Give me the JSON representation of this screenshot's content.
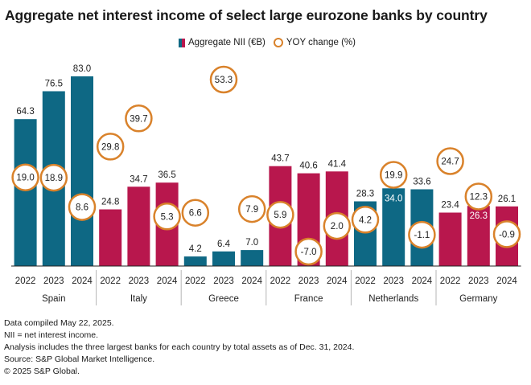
{
  "chart_data": {
    "type": "bar",
    "title": "Aggregate net interest income of select large eurozone banks by country",
    "legend": [
      {
        "label": "Aggregate NII (€B)",
        "marker": "square"
      },
      {
        "label": "YOY change (%)",
        "marker": "circle"
      }
    ],
    "groups": [
      {
        "name": "Spain",
        "color": "#0e6884",
        "years": [
          "2022",
          "2023",
          "2024"
        ],
        "nii": [
          64.3,
          76.5,
          83.0
        ],
        "nii_labels": [
          "64.3",
          "76.5",
          "83.0"
        ],
        "yoy": [
          19.0,
          18.9,
          8.6
        ],
        "yoy_labels": [
          "19.0",
          "18.9",
          "8.6"
        ]
      },
      {
        "name": "Italy",
        "color": "#b8174d",
        "years": [
          "2022",
          "2023",
          "2024"
        ],
        "nii": [
          24.8,
          34.7,
          36.5
        ],
        "nii_labels": [
          "24.8",
          "34.7",
          "36.5"
        ],
        "yoy": [
          29.8,
          39.7,
          5.3
        ],
        "yoy_labels": [
          "29.8",
          "39.7",
          "5.3"
        ]
      },
      {
        "name": "Greece",
        "color": "#0e6884",
        "years": [
          "2022",
          "2023",
          "2024"
        ],
        "nii": [
          4.2,
          6.4,
          7.0
        ],
        "nii_labels": [
          "4.2",
          "6.4",
          "7.0"
        ],
        "yoy": [
          6.6,
          53.3,
          7.9
        ],
        "yoy_labels": [
          "6.6",
          "53.3",
          "7.9"
        ]
      },
      {
        "name": "France",
        "color": "#b8174d",
        "years": [
          "2022",
          "2023",
          "2024"
        ],
        "nii": [
          43.7,
          40.6,
          41.4
        ],
        "nii_labels": [
          "43.7",
          "40.6",
          "41.4"
        ],
        "yoy": [
          5.9,
          -7.0,
          2.0
        ],
        "yoy_labels": [
          "5.9",
          "-7.0",
          "2.0"
        ]
      },
      {
        "name": "Netherlands",
        "color": "#0e6884",
        "years": [
          "2022",
          "2023",
          "2024"
        ],
        "nii": [
          28.3,
          34.0,
          33.6
        ],
        "nii_labels": [
          "28.3",
          "34.0",
          "33.6"
        ],
        "yoy": [
          4.2,
          19.9,
          -1.1
        ],
        "yoy_labels": [
          "4.2",
          "19.9",
          "-1.1"
        ]
      },
      {
        "name": "Germany",
        "color": "#b8174d",
        "years": [
          "2022",
          "2023",
          "2024"
        ],
        "nii": [
          23.4,
          26.3,
          26.1
        ],
        "nii_labels": [
          "23.4",
          "26.3",
          "26.1"
        ],
        "yoy": [
          24.7,
          12.3,
          -0.9
        ],
        "yoy_labels": [
          "24.7",
          "12.3",
          "-0.9"
        ]
      }
    ],
    "nii_ylim": [
      0,
      83
    ],
    "yoy_ylim": [
      -7.0,
      53.3
    ],
    "grid": false,
    "circle_color": "#d9822b"
  },
  "footnotes": [
    "Data compiled May 22, 2025.",
    "NII = net interest income.",
    "Analysis includes the three largest banks for each country by total assets as of Dec. 31, 2024.",
    "Source: S&P Global Market Intelligence.",
    "© 2025 S&P Global."
  ]
}
